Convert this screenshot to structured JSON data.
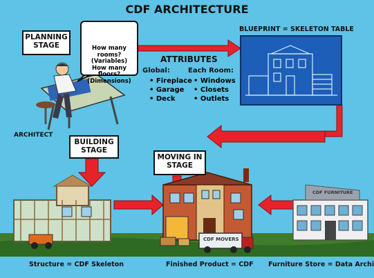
{
  "title": "CDF ARCHITECTURE",
  "planning_stage": "PLANNING STAGE",
  "bubble": {
    "q_rooms": "How many rooms?",
    "q_rooms_note": "(Variables)",
    "q_floors": "How many floors?",
    "q_floors_note": "(Dimensions)"
  },
  "attributes": {
    "heading": "ATTRIBUTES",
    "global_label": "Global:",
    "global_items": [
      "Fireplace",
      "Garage",
      "Deck"
    ],
    "room_label": "Each Room:",
    "room_items": [
      "Windows",
      "Closets",
      "Outlets"
    ]
  },
  "blueprint_label": "BLUEPRINT = SKELETON TABLE",
  "architect_label": "ARCHITECT",
  "building_stage": "BUILDING STAGE",
  "moving_in_stage": "MOVING IN STAGE",
  "sign_text": "CDF FURNITURE",
  "truck_text": "CDF MOVERS",
  "captions": {
    "structure": "Structure = CDF Skeleton",
    "finished": "Finished Product = CDF",
    "furniture": "Furniture Store = Data Archive"
  },
  "colors": {
    "background": "#5ec3e6",
    "arrow": "#e8222b",
    "blueprint": "#1d5fb8",
    "ground": "#3f7d2a"
  }
}
